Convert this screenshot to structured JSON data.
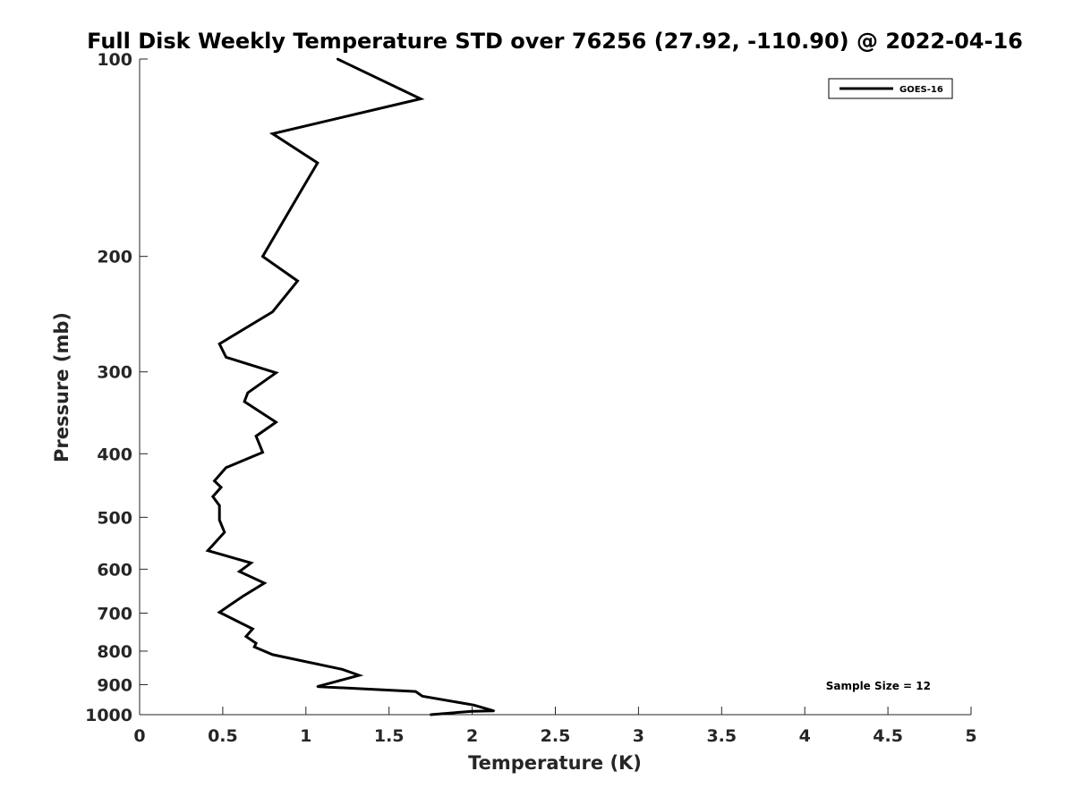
{
  "chart_data": {
    "type": "line",
    "title": "Full Disk Weekly Temperature STD over 76256 (27.92, -110.90) @ 2022-04-16",
    "xlabel": "Temperature (K)",
    "ylabel": "Pressure (mb)",
    "xlim": [
      0,
      5
    ],
    "ylim": [
      100,
      1000
    ],
    "y_scale": "log",
    "y_reversed": true,
    "x_ticks": [
      "0",
      "0.5",
      "1",
      "1.5",
      "2",
      "2.5",
      "3",
      "3.5",
      "4",
      "4.5",
      "5"
    ],
    "y_ticks": [
      "100",
      "200",
      "300",
      "400",
      "500",
      "600",
      "700",
      "800",
      "900",
      "1000"
    ],
    "grid": false,
    "legend_position": "top-right",
    "annotation": "Sample Size = 12",
    "series": [
      {
        "name": "GOES-16",
        "color": "#000000",
        "points": [
          [
            1.19,
            100
          ],
          [
            1.69,
            115
          ],
          [
            0.8,
            130
          ],
          [
            1.07,
            144
          ],
          [
            0.97,
            159
          ],
          [
            0.74,
            200
          ],
          [
            0.95,
            218
          ],
          [
            0.8,
            243
          ],
          [
            0.48,
            272
          ],
          [
            0.52,
            285
          ],
          [
            0.82,
            301
          ],
          [
            0.65,
            323
          ],
          [
            0.63,
            333
          ],
          [
            0.82,
            358
          ],
          [
            0.7,
            376
          ],
          [
            0.74,
            398
          ],
          [
            0.52,
            420
          ],
          [
            0.45,
            440
          ],
          [
            0.49,
            450
          ],
          [
            0.44,
            465
          ],
          [
            0.48,
            480
          ],
          [
            0.48,
            505
          ],
          [
            0.51,
            527
          ],
          [
            0.41,
            562
          ],
          [
            0.67,
            587
          ],
          [
            0.6,
            605
          ],
          [
            0.75,
            630
          ],
          [
            0.62,
            660
          ],
          [
            0.48,
            698
          ],
          [
            0.68,
            740
          ],
          [
            0.64,
            760
          ],
          [
            0.7,
            778
          ],
          [
            0.69,
            788
          ],
          [
            0.8,
            810
          ],
          [
            1.22,
            853
          ],
          [
            1.32,
            871
          ],
          [
            1.07,
            906
          ],
          [
            1.66,
            922
          ],
          [
            1.7,
            937
          ],
          [
            2.01,
            967
          ],
          [
            2.13,
            987
          ],
          [
            2.0,
            988
          ],
          [
            1.75,
            1000
          ]
        ]
      }
    ]
  }
}
